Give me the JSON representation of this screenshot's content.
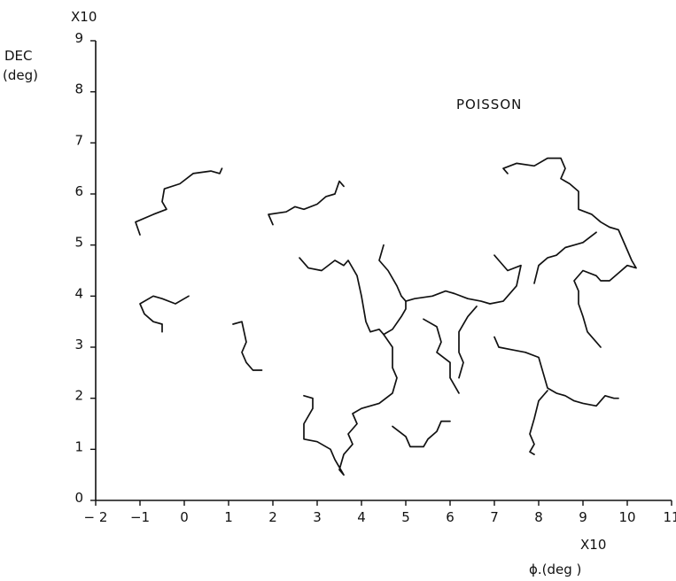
{
  "chart_data": {
    "type": "line",
    "title": "",
    "annotation": "POISSON",
    "xlabel": "ϕ.(deg )",
    "ylabel_line1": "DEC",
    "ylabel_line2": "(deg)",
    "x_scale_note": "X10",
    "y_scale_note": "X10",
    "xlim": [
      -2,
      11
    ],
    "ylim": [
      0,
      9
    ],
    "x_ticks": [
      -2,
      -1,
      0,
      1,
      2,
      3,
      4,
      5,
      6,
      7,
      8,
      9,
      10,
      11
    ],
    "x_tick_labels": [
      "− 2",
      "−1",
      "0",
      "1",
      "2",
      "3",
      "4",
      "5",
      "6",
      "7",
      "8",
      "9",
      "10",
      "11"
    ],
    "y_ticks": [
      0,
      1,
      2,
      3,
      4,
      5,
      6,
      7,
      8,
      9
    ],
    "y_tick_labels": [
      "0",
      "1",
      "2",
      "3",
      "4",
      "5",
      "6",
      "7",
      "8",
      "9"
    ],
    "grid": false,
    "line_color": "#111111",
    "series": [
      {
        "points": [
          [
            -1.0,
            5.2
          ],
          [
            -1.1,
            5.45
          ],
          [
            -0.7,
            5.6
          ],
          [
            -0.4,
            5.7
          ],
          [
            -0.5,
            5.85
          ],
          [
            -0.45,
            6.1
          ],
          [
            -0.1,
            6.2
          ],
          [
            0.2,
            6.4
          ],
          [
            0.6,
            6.45
          ],
          [
            0.8,
            6.4
          ],
          [
            0.85,
            6.5
          ]
        ]
      },
      {
        "points": [
          [
            -0.5,
            3.3
          ],
          [
            -0.5,
            3.45
          ],
          [
            -0.7,
            3.5
          ],
          [
            -0.9,
            3.65
          ],
          [
            -1.0,
            3.85
          ],
          [
            -0.7,
            4.0
          ],
          [
            -0.5,
            3.95
          ],
          [
            -0.2,
            3.85
          ],
          [
            0.0,
            3.95
          ],
          [
            0.1,
            4.0
          ]
        ]
      },
      {
        "points": [
          [
            1.1,
            3.45
          ],
          [
            1.3,
            3.5
          ],
          [
            1.35,
            3.3
          ],
          [
            1.4,
            3.1
          ],
          [
            1.3,
            2.9
          ],
          [
            1.4,
            2.7
          ],
          [
            1.55,
            2.55
          ],
          [
            1.75,
            2.55
          ]
        ]
      },
      {
        "points": [
          [
            2.0,
            5.4
          ],
          [
            1.9,
            5.6
          ],
          [
            2.3,
            5.65
          ],
          [
            2.5,
            5.75
          ],
          [
            2.7,
            5.7
          ],
          [
            3.0,
            5.8
          ],
          [
            3.2,
            5.95
          ],
          [
            3.4,
            6.0
          ],
          [
            3.5,
            6.25
          ],
          [
            3.6,
            6.15
          ]
        ]
      },
      {
        "points": [
          [
            2.6,
            4.75
          ],
          [
            2.8,
            4.55
          ],
          [
            3.1,
            4.5
          ],
          [
            3.4,
            4.7
          ],
          [
            3.6,
            4.6
          ],
          [
            3.7,
            4.7
          ],
          [
            3.9,
            4.4
          ],
          [
            4.0,
            4.0
          ],
          [
            4.1,
            3.5
          ],
          [
            4.2,
            3.3
          ],
          [
            4.4,
            3.35
          ],
          [
            4.5,
            3.25
          ]
        ]
      },
      {
        "points": [
          [
            4.5,
            5.0
          ],
          [
            4.4,
            4.7
          ],
          [
            4.6,
            4.5
          ],
          [
            4.8,
            4.2
          ],
          [
            4.9,
            4.0
          ],
          [
            5.0,
            3.9
          ],
          [
            5.2,
            3.95
          ],
          [
            5.6,
            4.0
          ],
          [
            5.9,
            4.1
          ],
          [
            6.1,
            4.05
          ],
          [
            6.4,
            3.95
          ],
          [
            6.7,
            3.9
          ],
          [
            6.9,
            3.85
          ],
          [
            7.2,
            3.9
          ],
          [
            7.5,
            4.2
          ],
          [
            7.6,
            4.6
          ],
          [
            7.3,
            4.5
          ],
          [
            7.1,
            4.7
          ],
          [
            7.0,
            4.8
          ]
        ]
      },
      {
        "points": [
          [
            4.5,
            3.25
          ],
          [
            4.7,
            3.35
          ],
          [
            4.9,
            3.6
          ],
          [
            5.0,
            3.75
          ],
          [
            5.0,
            3.9
          ]
        ]
      },
      {
        "points": [
          [
            4.5,
            3.25
          ],
          [
            4.7,
            3.0
          ],
          [
            4.7,
            2.6
          ],
          [
            4.8,
            2.4
          ],
          [
            4.7,
            2.1
          ],
          [
            4.4,
            1.9
          ],
          [
            4.0,
            1.8
          ],
          [
            3.8,
            1.7
          ],
          [
            3.9,
            1.5
          ],
          [
            3.7,
            1.3
          ],
          [
            3.8,
            1.1
          ],
          [
            3.6,
            0.9
          ],
          [
            3.5,
            0.6
          ],
          [
            3.6,
            0.5
          ],
          [
            3.4,
            0.8
          ],
          [
            3.3,
            1.0
          ],
          [
            3.0,
            1.15
          ],
          [
            2.7,
            1.2
          ],
          [
            2.7,
            1.5
          ],
          [
            2.9,
            1.8
          ],
          [
            2.9,
            2.0
          ],
          [
            2.7,
            2.05
          ]
        ]
      },
      {
        "points": [
          [
            4.7,
            1.45
          ],
          [
            5.0,
            1.25
          ],
          [
            5.1,
            1.05
          ],
          [
            5.4,
            1.05
          ],
          [
            5.5,
            1.2
          ],
          [
            5.7,
            1.35
          ],
          [
            5.8,
            1.55
          ],
          [
            6.0,
            1.55
          ]
        ]
      },
      {
        "points": [
          [
            5.4,
            3.55
          ],
          [
            5.7,
            3.4
          ],
          [
            5.8,
            3.1
          ],
          [
            5.7,
            2.9
          ],
          [
            6.0,
            2.7
          ],
          [
            6.0,
            2.4
          ],
          [
            6.2,
            2.1
          ]
        ]
      },
      {
        "points": [
          [
            6.6,
            3.8
          ],
          [
            6.4,
            3.6
          ],
          [
            6.2,
            3.3
          ],
          [
            6.2,
            2.9
          ],
          [
            6.3,
            2.7
          ],
          [
            6.2,
            2.4
          ]
        ]
      },
      {
        "points": [
          [
            7.0,
            3.2
          ],
          [
            7.1,
            3.0
          ],
          [
            7.4,
            2.95
          ],
          [
            7.7,
            2.9
          ],
          [
            8.0,
            2.8
          ],
          [
            8.1,
            2.5
          ],
          [
            8.2,
            2.2
          ],
          [
            8.4,
            2.1
          ],
          [
            8.6,
            2.05
          ],
          [
            8.8,
            1.95
          ],
          [
            9.0,
            1.9
          ],
          [
            9.3,
            1.85
          ],
          [
            9.5,
            2.05
          ],
          [
            9.7,
            2.0
          ],
          [
            9.8,
            2.0
          ]
        ]
      },
      {
        "points": [
          [
            8.2,
            2.15
          ],
          [
            8.0,
            1.95
          ],
          [
            7.9,
            1.6
          ],
          [
            7.8,
            1.3
          ],
          [
            7.9,
            1.1
          ],
          [
            7.8,
            0.95
          ],
          [
            7.9,
            0.9
          ]
        ]
      },
      {
        "points": [
          [
            7.3,
            6.4
          ],
          [
            7.2,
            6.5
          ],
          [
            7.5,
            6.6
          ],
          [
            7.9,
            6.55
          ],
          [
            8.2,
            6.7
          ],
          [
            8.5,
            6.7
          ],
          [
            8.6,
            6.5
          ],
          [
            8.5,
            6.3
          ],
          [
            8.7,
            6.2
          ],
          [
            8.9,
            6.05
          ],
          [
            8.9,
            5.7
          ],
          [
            9.2,
            5.6
          ],
          [
            9.4,
            5.45
          ],
          [
            9.6,
            5.35
          ],
          [
            9.8,
            5.3
          ],
          [
            9.9,
            5.1
          ],
          [
            10.0,
            4.9
          ],
          [
            10.1,
            4.7
          ],
          [
            10.2,
            4.55
          ],
          [
            10.0,
            4.6
          ],
          [
            9.8,
            4.45
          ],
          [
            9.6,
            4.3
          ],
          [
            9.4,
            4.3
          ],
          [
            9.3,
            4.4
          ],
          [
            9.0,
            4.5
          ],
          [
            8.8,
            4.3
          ],
          [
            8.9,
            4.1
          ],
          [
            8.9,
            3.85
          ],
          [
            9.0,
            3.6
          ],
          [
            9.1,
            3.3
          ],
          [
            9.3,
            3.1
          ],
          [
            9.4,
            3.0
          ]
        ]
      },
      {
        "points": [
          [
            7.9,
            4.25
          ],
          [
            8.0,
            4.6
          ],
          [
            8.2,
            4.75
          ],
          [
            8.4,
            4.8
          ],
          [
            8.6,
            4.95
          ],
          [
            8.8,
            5.0
          ],
          [
            9.0,
            5.05
          ],
          [
            9.3,
            5.25
          ]
        ]
      }
    ]
  }
}
